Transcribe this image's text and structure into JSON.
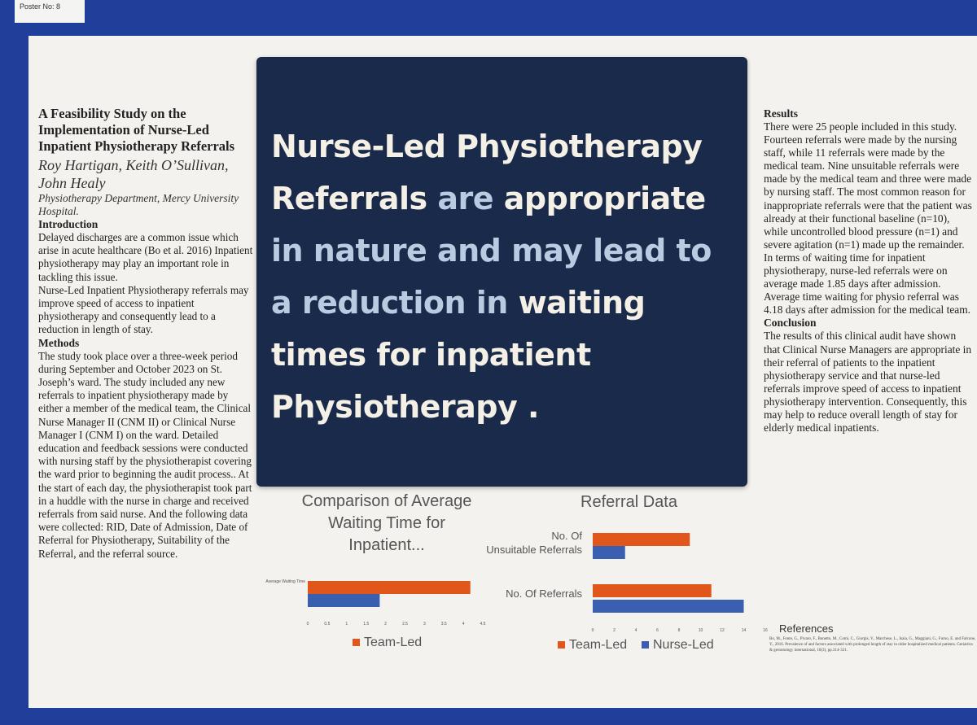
{
  "poster_no": "Poster No: 8",
  "left": {
    "title": "A Feasibility Study on the Implementation of Nurse-Led Inpatient Physiotherapy Referrals",
    "authors": "Roy Hartigan, Keith O’Sullivan, John Healy",
    "affiliation": "Physiotherapy Department, Mercy University Hospital.",
    "sections": [
      {
        "heading": "Introduction",
        "paragraphs": [
          "Delayed discharges are a common issue which arise in acute healthcare (Bo et al. 2016) Inpatient physiotherapy may play an important role in tackling this issue.",
          "Nurse-Led Inpatient Physiotherapy referrals may improve speed of access to inpatient physiotherapy and consequently lead to a reduction in length of stay."
        ]
      },
      {
        "heading": "Methods",
        "paragraphs": [
          "The study took place over a three-week period during September and October 2023 on St. Joseph’s ward. The study included any new referrals to inpatient physiotherapy made by either a member of the medical team, the Clinical Nurse Manager II (CNM II) or Clinical Nurse Manager I (CNM I) on the ward. Detailed education and feedback sessions were conducted with nursing staff by the physiotherapist covering the ward prior to beginning the audit process.. At the start of each day, the physiotherapist took part in a huddle with the nurse in charge  and received referrals from said nurse. And the following data were collected: RID, Date of Admission, Date of Referral for Physiotherapy, Suitability of the Referral, and the referral source."
        ]
      }
    ]
  },
  "headline": [
    {
      "text": "Nurse-Led Physiotherapy Referrals",
      "highlight": true
    },
    {
      "text": "are",
      "highlight": false
    },
    {
      "text": "appropriate",
      "highlight": true
    },
    {
      "text": "in nature and may lead to a reduction in",
      "highlight": false
    },
    {
      "text": "waiting times for inpatient Physiotherapy .",
      "highlight": true
    }
  ],
  "right": {
    "sections": [
      {
        "heading": "Results",
        "paragraphs": [
          "There were 25 people included in this study. Fourteen referrals were made by the nursing staff, while 11 referrals were made by the medical team. Nine unsuitable referrals were made by the medical team and three were made by nursing staff. The most common reason for inappropriate referrals were that the patient was already at their functional baseline (n=10), while uncontrolled blood pressure (n=1) and severe agitation (n=1) made up the remainder. In terms of waiting time for inpatient physiotherapy, nurse-led referrals were on average made 1.85 days after admission. Average time waiting for physio referral was 4.18 days after admission for the medical team."
        ]
      },
      {
        "heading": "Conclusion",
        "paragraphs": [
          "The results of this clinical audit have shown that Clinical Nurse Managers are appropriate in their referral of patients to the inpatient physiotherapy service and that nurse-led referrals improve speed of access to inpatient physiotherapy intervention. Consequently, this may help to reduce overall length of stay for elderly medical inpatients."
        ]
      }
    ],
    "references_heading": "References",
    "references": "Bo, M., Fonte, G., Pivaro, F., Bonetto, M., Comi, C., Giorgis, V., Marchese, L., Isaia, G., Maggiani, G., Furno, E. and Falcone, Y., 2016. Prevalence of and factors associated with prolonged length of stay in older hospitalized medical patients. Geriatrics & gerontology international, 16(3), pp.314-321."
  },
  "charts": [
    {
      "type": "hbar",
      "title": "Comparison of Average Waiting Time for Inpatient...",
      "categories": [
        "Average Waiting Time"
      ],
      "series": [
        {
          "name": "Team-Led",
          "color": "#e0561b",
          "values": [
            4.18
          ]
        },
        {
          "color": "#3a5fb0",
          "values": [
            1.85
          ]
        }
      ],
      "xlim": [
        0,
        4.5
      ],
      "xticks": [
        0,
        0.5,
        1,
        1.5,
        2,
        2.5,
        3,
        3.5,
        4,
        4.5
      ]
    },
    {
      "type": "hbar",
      "title": "Referral Data",
      "categories": [
        "No. Of Unsuitable Referrals",
        "No. Of Referrals"
      ],
      "series": [
        {
          "name": "Team-Led",
          "color": "#e0561b",
          "values": [
            9,
            11
          ]
        },
        {
          "name": "Nurse-Led",
          "color": "#3a5fb0",
          "values": [
            3,
            14
          ]
        }
      ],
      "xlim": [
        0,
        16
      ],
      "xticks": [
        0,
        2,
        4,
        6,
        8,
        10,
        12,
        14,
        16
      ]
    }
  ]
}
